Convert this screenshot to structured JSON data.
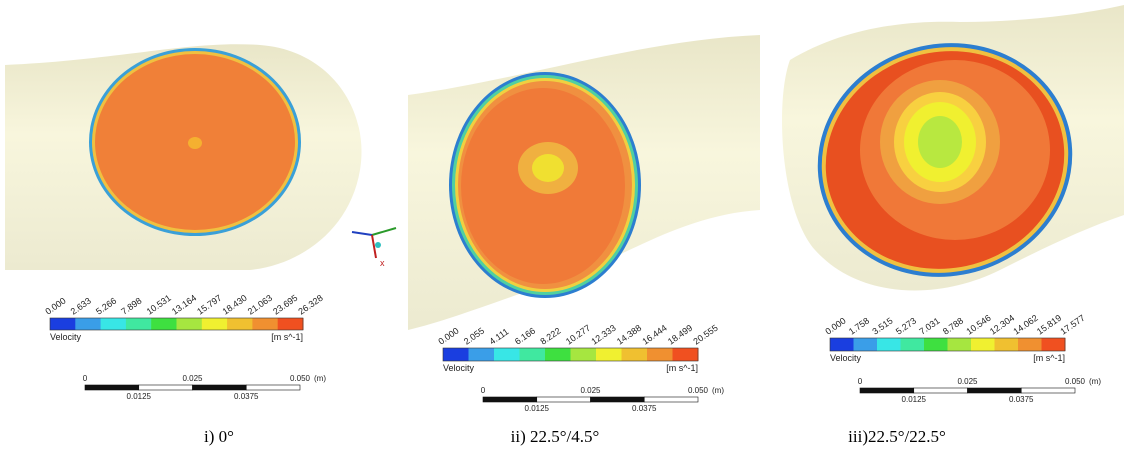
{
  "axes_label": "x",
  "panels": [
    {
      "colorbar": {
        "ticks": [
          "0.000",
          "2.633",
          "5.266",
          "7.898",
          "10.531",
          "13.164",
          "15.797",
          "18.430",
          "21.063",
          "23.695",
          "26.328"
        ],
        "label": "Velocity",
        "unit": "[m s^-1]"
      },
      "scale": {
        "top": [
          "0",
          "0.025",
          "0.050",
          "(m)"
        ],
        "bottom": [
          "0.0125",
          "0.0375"
        ]
      },
      "caption": "i) 0°"
    },
    {
      "colorbar": {
        "ticks": [
          "0.000",
          "2.055",
          "4.111",
          "6.166",
          "8.222",
          "10.277",
          "12.333",
          "14.388",
          "16.444",
          "18.499",
          "20.555"
        ],
        "label": "Velocity",
        "unit": "[m s^-1]"
      },
      "scale": {
        "top": [
          "0",
          "0.025",
          "0.050",
          "(m)"
        ],
        "bottom": [
          "0.0125",
          "0.0375"
        ]
      },
      "caption": "ii) 22.5°/4.5°"
    },
    {
      "colorbar": {
        "ticks": [
          "0.000",
          "1.758",
          "3.515",
          "5.273",
          "7.031",
          "8.788",
          "10.546",
          "12.304",
          "14.062",
          "15.819",
          "17.577"
        ],
        "label": "Velocity",
        "unit": "[m s^-1]"
      },
      "scale": {
        "top": [
          "0",
          "0.025",
          "0.050",
          "(m)"
        ],
        "bottom": [
          "0.0125",
          "0.0375"
        ]
      },
      "caption": "iii)22.5°/22.5°"
    }
  ]
}
